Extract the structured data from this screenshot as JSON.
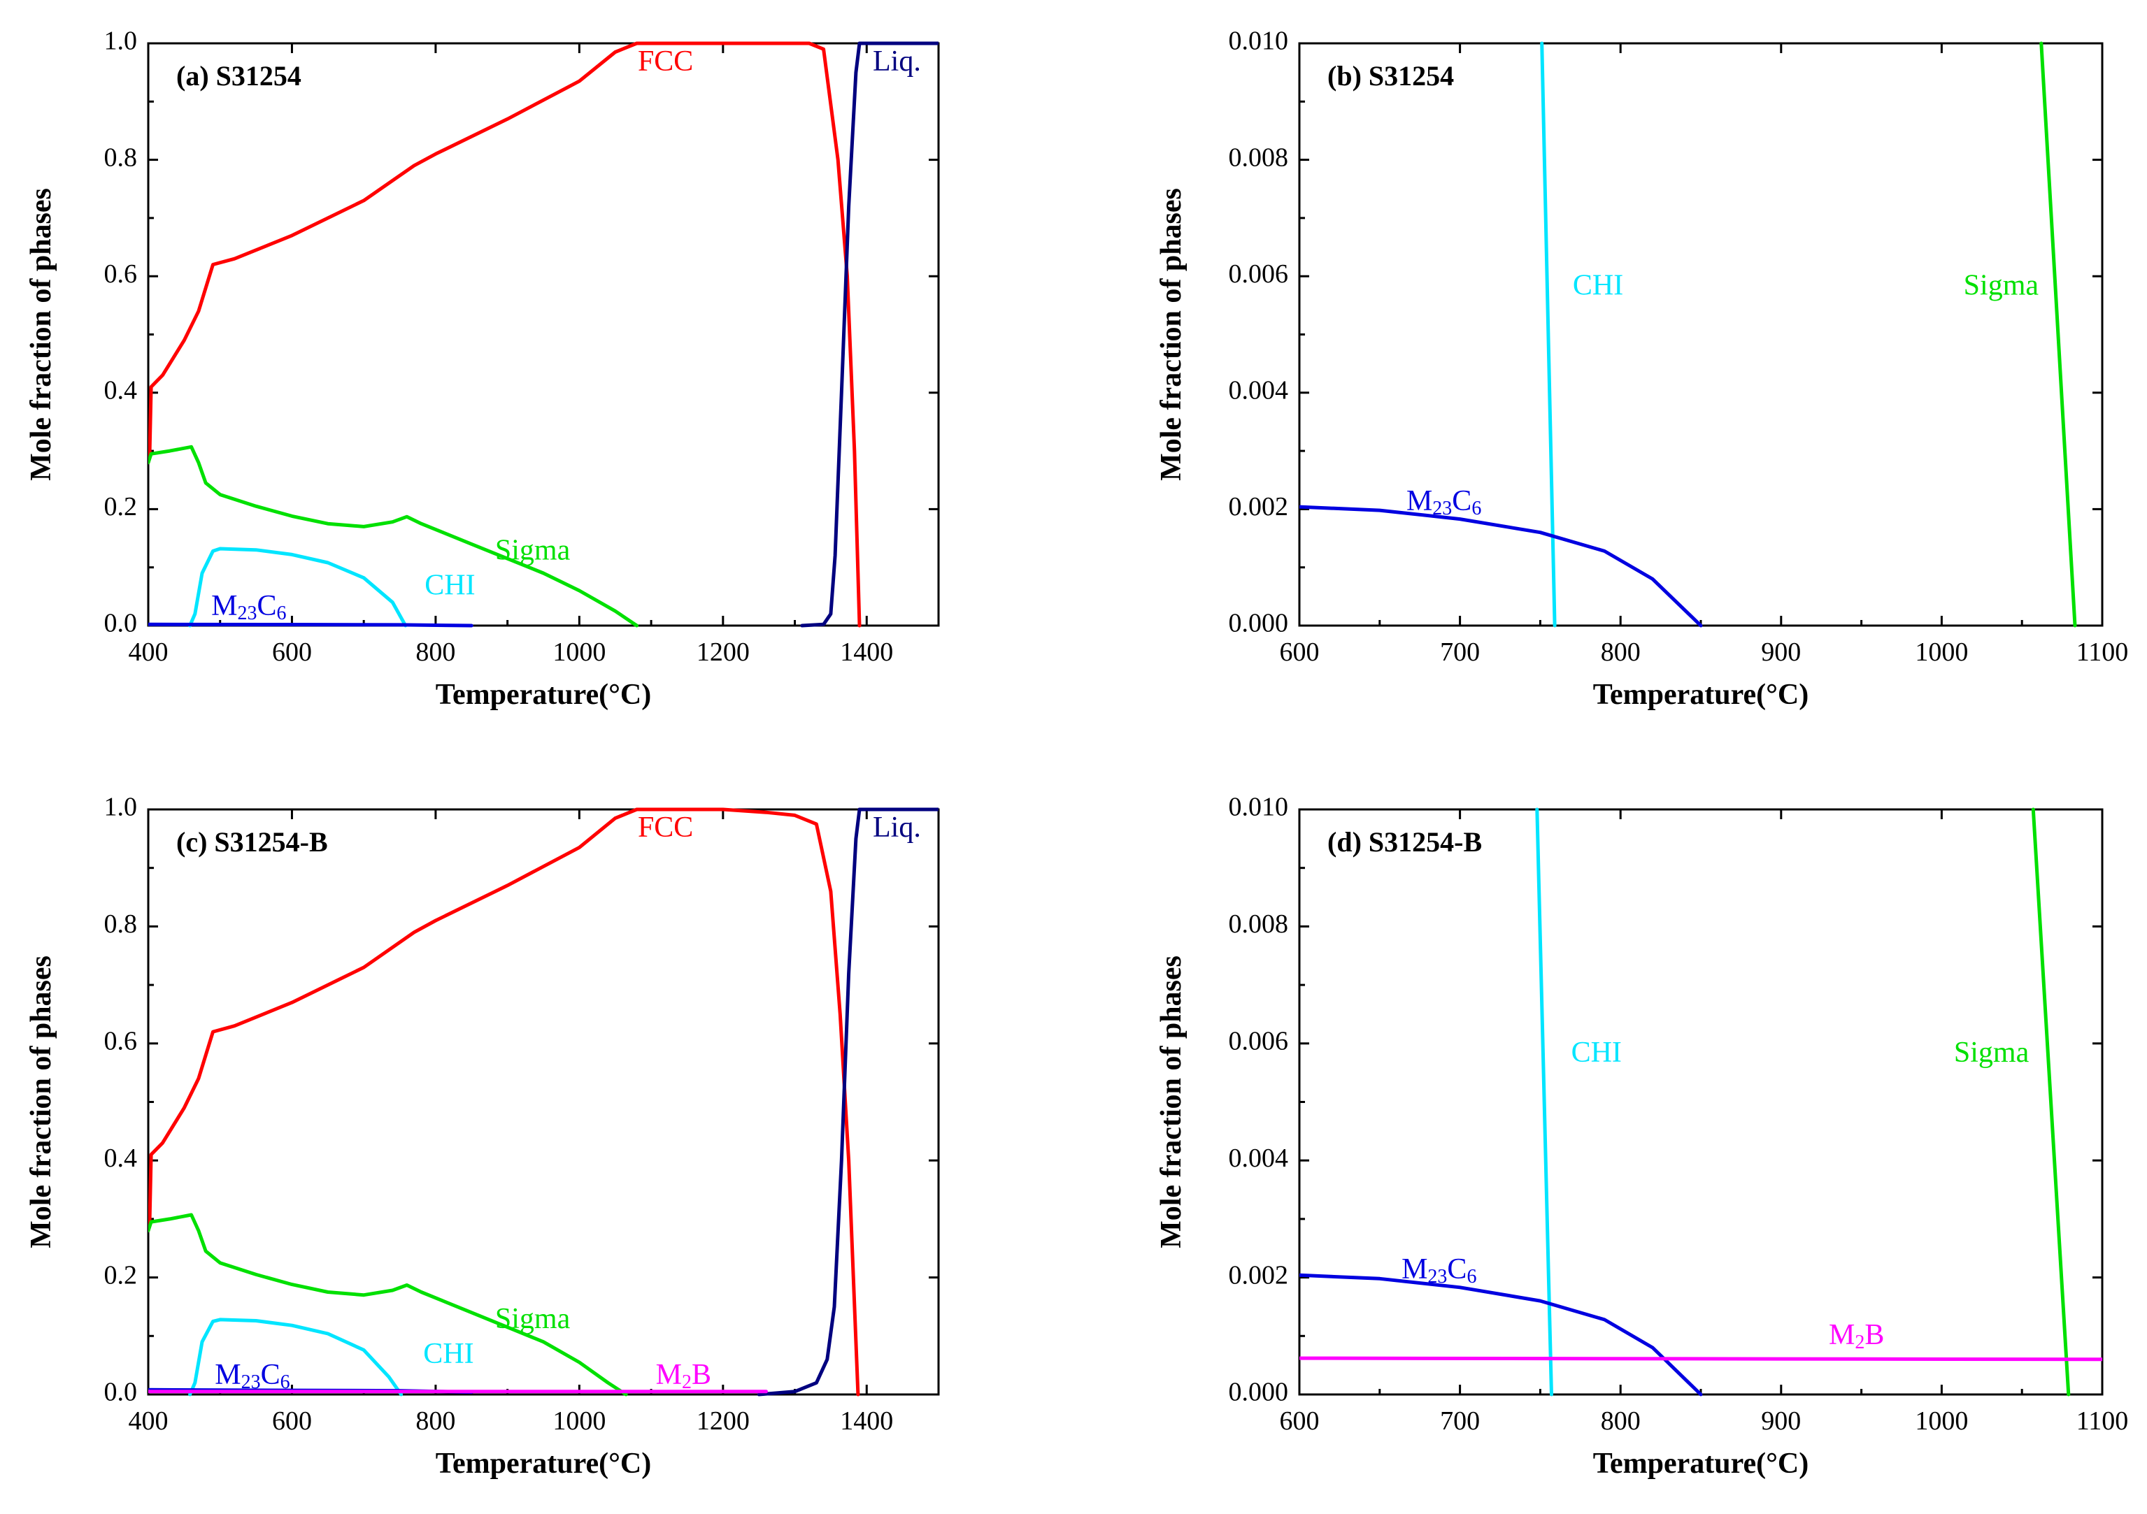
{
  "colors": {
    "FCC": "#ff0000",
    "Liq": "#00007f",
    "Sigma": "#00e000",
    "CHI": "#00e5ff",
    "M23C6": "#0000e0",
    "M2B": "#ff00ff"
  },
  "chart_data": [
    {
      "type": "line",
      "panel_label": "(a)  S31254",
      "xlabel": "Temperature(°C)",
      "ylabel": "Mole fraction of phases",
      "xlim": [
        400,
        1500
      ],
      "ylim": [
        0,
        1.0
      ],
      "xticks": [
        400,
        600,
        800,
        1000,
        1200,
        1400
      ],
      "yticks": [
        0.0,
        0.2,
        0.4,
        0.6,
        0.8,
        1.0
      ],
      "ytick_labels": [
        "0.0",
        "0.2",
        "0.4",
        "0.6",
        "0.8",
        "1.0"
      ],
      "legend": "inline labels",
      "series": [
        {
          "key": "FCC",
          "name": "FCC",
          "label_at": [
            1120,
            0.965
          ],
          "points": [
            [
              400,
              0.28
            ],
            [
              402,
              0.3
            ],
            [
              404,
              0.41
            ],
            [
              420,
              0.43
            ],
            [
              450,
              0.49
            ],
            [
              470,
              0.54
            ],
            [
              490,
              0.62
            ],
            [
              520,
              0.63
            ],
            [
              600,
              0.67
            ],
            [
              700,
              0.73
            ],
            [
              770,
              0.79
            ],
            [
              800,
              0.81
            ],
            [
              900,
              0.87
            ],
            [
              1000,
              0.935
            ],
            [
              1050,
              0.985
            ],
            [
              1080,
              1.0
            ],
            [
              1200,
              1.0
            ],
            [
              1320,
              1.0
            ],
            [
              1340,
              0.99
            ],
            [
              1360,
              0.8
            ],
            [
              1373,
              0.6
            ],
            [
              1383,
              0.3
            ],
            [
              1390,
              0.0
            ]
          ]
        },
        {
          "key": "Liq",
          "name": "Liq.",
          "label_at": [
            1442,
            0.965
          ],
          "points": [
            [
              1310,
              0.0
            ],
            [
              1340,
              0.002
            ],
            [
              1350,
              0.02
            ],
            [
              1356,
              0.12
            ],
            [
              1365,
              0.4
            ],
            [
              1375,
              0.72
            ],
            [
              1385,
              0.95
            ],
            [
              1390,
              1.0
            ],
            [
              1500,
              1.0
            ]
          ]
        },
        {
          "key": "Sigma",
          "name": "Sigma",
          "label_at": [
            935,
            0.125
          ],
          "points": [
            [
              400,
              0.28
            ],
            [
              404,
              0.295
            ],
            [
              430,
              0.3
            ],
            [
              460,
              0.307
            ],
            [
              470,
              0.28
            ],
            [
              480,
              0.245
            ],
            [
              500,
              0.225
            ],
            [
              550,
              0.205
            ],
            [
              600,
              0.188
            ],
            [
              650,
              0.175
            ],
            [
              700,
              0.17
            ],
            [
              740,
              0.178
            ],
            [
              760,
              0.187
            ],
            [
              780,
              0.175
            ],
            [
              850,
              0.14
            ],
            [
              950,
              0.09
            ],
            [
              1000,
              0.06
            ],
            [
              1050,
              0.025
            ],
            [
              1080,
              0.0
            ]
          ]
        },
        {
          "key": "CHI",
          "name": "CHI",
          "label_at": [
            820,
            0.065
          ],
          "points": [
            [
              458,
              0.0
            ],
            [
              465,
              0.02
            ],
            [
              475,
              0.09
            ],
            [
              490,
              0.128
            ],
            [
              500,
              0.132
            ],
            [
              550,
              0.13
            ],
            [
              600,
              0.122
            ],
            [
              650,
              0.108
            ],
            [
              700,
              0.082
            ],
            [
              740,
              0.04
            ],
            [
              758,
              0.0
            ]
          ]
        },
        {
          "key": "M23C6",
          "name": "M23C6",
          "label_at": [
            540,
            0.03
          ],
          "points": [
            [
              400,
              0.002
            ],
            [
              600,
              0.0018
            ],
            [
              750,
              0.0013
            ],
            [
              850,
              0.0
            ]
          ]
        }
      ]
    },
    {
      "type": "line",
      "panel_label": "(b)  S31254",
      "xlabel": "Temperature(°C)",
      "ylabel": "Mole fraction of phases",
      "xlim": [
        600,
        1100
      ],
      "ylim": [
        0,
        0.01
      ],
      "xticks": [
        600,
        700,
        800,
        900,
        1000,
        1100
      ],
      "yticks": [
        0.0,
        0.002,
        0.004,
        0.006,
        0.008,
        0.01
      ],
      "ytick_labels": [
        "0.000",
        "0.002",
        "0.004",
        "0.006",
        "0.008",
        "0.010"
      ],
      "legend": "inline labels",
      "series": [
        {
          "key": "CHI",
          "name": "CHI",
          "label_at": [
            786,
            0.0058
          ],
          "points": [
            [
              751,
              0.01
            ],
            [
              759,
              0.0
            ]
          ]
        },
        {
          "key": "Sigma",
          "name": "Sigma",
          "label_at": [
            1037,
            0.0058
          ],
          "points": [
            [
              1062,
              0.01
            ],
            [
              1083,
              0.0
            ]
          ]
        },
        {
          "key": "M23C6",
          "name": "M23C6",
          "label_at": [
            690,
            0.0021
          ],
          "points": [
            [
              600,
              0.00204
            ],
            [
              650,
              0.00198
            ],
            [
              700,
              0.00183
            ],
            [
              750,
              0.0016
            ],
            [
              790,
              0.00128
            ],
            [
              820,
              0.0008
            ],
            [
              850,
              0.0
            ]
          ]
        }
      ]
    },
    {
      "type": "line",
      "panel_label": "(c)  S31254-B",
      "xlabel": "Temperature(°C)",
      "ylabel": "Mole fraction of phases",
      "xlim": [
        400,
        1500
      ],
      "ylim": [
        0,
        1.0
      ],
      "xticks": [
        400,
        600,
        800,
        1000,
        1200,
        1400
      ],
      "yticks": [
        0.0,
        0.2,
        0.4,
        0.6,
        0.8,
        1.0
      ],
      "ytick_labels": [
        "0.0",
        "0.2",
        "0.4",
        "0.6",
        "0.8",
        "1.0"
      ],
      "legend": "inline labels",
      "series": [
        {
          "key": "FCC",
          "name": "FCC",
          "label_at": [
            1120,
            0.965
          ],
          "points": [
            [
              400,
              0.28
            ],
            [
              402,
              0.3
            ],
            [
              404,
              0.41
            ],
            [
              420,
              0.43
            ],
            [
              450,
              0.49
            ],
            [
              470,
              0.54
            ],
            [
              490,
              0.62
            ],
            [
              520,
              0.63
            ],
            [
              600,
              0.67
            ],
            [
              700,
              0.73
            ],
            [
              770,
              0.79
            ],
            [
              800,
              0.81
            ],
            [
              900,
              0.87
            ],
            [
              1000,
              0.935
            ],
            [
              1050,
              0.985
            ],
            [
              1080,
              1.0
            ],
            [
              1200,
              1.0
            ],
            [
              1260,
              0.995
            ],
            [
              1300,
              0.99
            ],
            [
              1330,
              0.975
            ],
            [
              1350,
              0.86
            ],
            [
              1363,
              0.65
            ],
            [
              1375,
              0.4
            ],
            [
              1388,
              0.0
            ]
          ]
        },
        {
          "key": "Liq",
          "name": "Liq.",
          "label_at": [
            1442,
            0.965
          ],
          "points": [
            [
              1250,
              0.0
            ],
            [
              1300,
              0.005
            ],
            [
              1330,
              0.02
            ],
            [
              1345,
              0.06
            ],
            [
              1355,
              0.15
            ],
            [
              1365,
              0.4
            ],
            [
              1375,
              0.72
            ],
            [
              1385,
              0.95
            ],
            [
              1390,
              1.0
            ],
            [
              1500,
              1.0
            ]
          ]
        },
        {
          "key": "Sigma",
          "name": "Sigma",
          "label_at": [
            935,
            0.125
          ],
          "points": [
            [
              400,
              0.28
            ],
            [
              404,
              0.295
            ],
            [
              430,
              0.3
            ],
            [
              460,
              0.307
            ],
            [
              470,
              0.28
            ],
            [
              480,
              0.245
            ],
            [
              500,
              0.225
            ],
            [
              550,
              0.205
            ],
            [
              600,
              0.188
            ],
            [
              650,
              0.175
            ],
            [
              700,
              0.17
            ],
            [
              740,
              0.178
            ],
            [
              760,
              0.187
            ],
            [
              780,
              0.175
            ],
            [
              850,
              0.14
            ],
            [
              950,
              0.09
            ],
            [
              1000,
              0.055
            ],
            [
              1040,
              0.02
            ],
            [
              1065,
              0.0
            ]
          ]
        },
        {
          "key": "CHI",
          "name": "CHI",
          "label_at": [
            818,
            0.065
          ],
          "points": [
            [
              458,
              0.0
            ],
            [
              465,
              0.02
            ],
            [
              475,
              0.09
            ],
            [
              490,
              0.125
            ],
            [
              500,
              0.128
            ],
            [
              550,
              0.126
            ],
            [
              600,
              0.118
            ],
            [
              650,
              0.104
            ],
            [
              700,
              0.076
            ],
            [
              735,
              0.03
            ],
            [
              752,
              0.0
            ]
          ]
        },
        {
          "key": "M23C6",
          "name": "M23C6",
          "label_at": [
            545,
            0.03
          ],
          "points": [
            [
              400,
              0.008
            ],
            [
              600,
              0.007
            ],
            [
              750,
              0.0065
            ],
            [
              850,
              0.004
            ]
          ]
        },
        {
          "key": "M2B",
          "name": "M2B",
          "label_at": [
            1145,
            0.03
          ],
          "points": [
            [
              400,
              0.005
            ],
            [
              1260,
              0.005
            ]
          ]
        }
      ]
    },
    {
      "type": "line",
      "panel_label": "(d)  S31254-B",
      "xlabel": "Temperature(°C)",
      "ylabel": "Mole fraction of phases",
      "xlim": [
        600,
        1100
      ],
      "ylim": [
        0,
        0.01
      ],
      "xticks": [
        600,
        700,
        800,
        900,
        1000,
        1100
      ],
      "yticks": [
        0.0,
        0.002,
        0.004,
        0.006,
        0.008,
        0.01
      ],
      "ytick_labels": [
        "0.000",
        "0.002",
        "0.004",
        "0.006",
        "0.008",
        "0.010"
      ],
      "legend": "inline labels",
      "series": [
        {
          "key": "CHI",
          "name": "CHI",
          "label_at": [
            785,
            0.0058
          ],
          "points": [
            [
              748,
              0.01
            ],
            [
              757,
              0.0
            ]
          ]
        },
        {
          "key": "Sigma",
          "name": "Sigma",
          "label_at": [
            1031,
            0.0058
          ],
          "points": [
            [
              1057,
              0.01
            ],
            [
              1079,
              0.0
            ]
          ]
        },
        {
          "key": "M23C6",
          "name": "M23C6",
          "label_at": [
            687,
            0.0021
          ],
          "points": [
            [
              600,
              0.00204
            ],
            [
              650,
              0.00198
            ],
            [
              700,
              0.00183
            ],
            [
              750,
              0.0016
            ],
            [
              790,
              0.00128
            ],
            [
              820,
              0.0008
            ],
            [
              850,
              0.0
            ]
          ]
        },
        {
          "key": "M2B",
          "name": "M2B",
          "label_at": [
            947,
            0.00098
          ],
          "points": [
            [
              600,
              0.00062
            ],
            [
              1100,
              0.0006
            ]
          ]
        }
      ]
    }
  ]
}
